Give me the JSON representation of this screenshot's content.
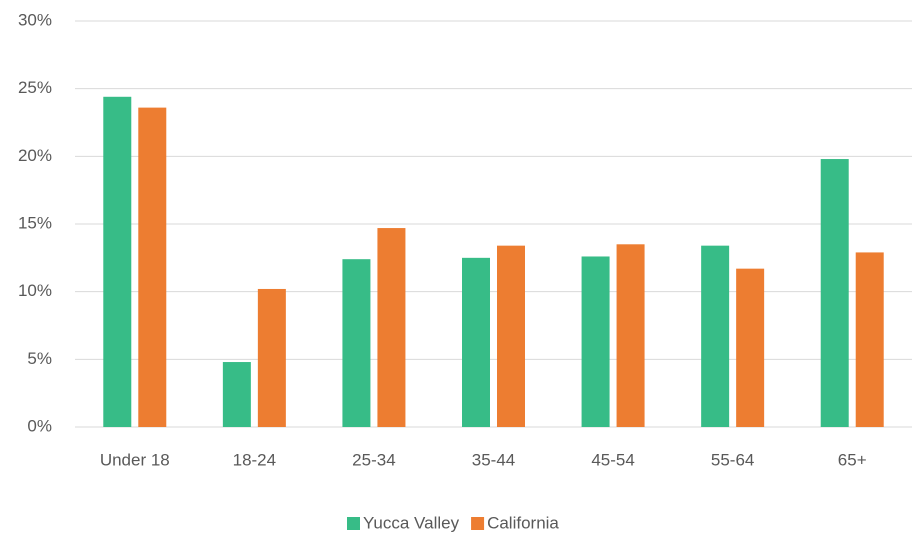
{
  "chart_data": {
    "type": "bar",
    "categories": [
      "Under 18",
      "18-24",
      "25-34",
      "35-44",
      "45-54",
      "55-64",
      "65+"
    ],
    "series": [
      {
        "name": "Yucca Valley",
        "color": "#37bc87",
        "values": [
          24.4,
          4.8,
          12.4,
          12.5,
          12.6,
          13.4,
          19.8
        ]
      },
      {
        "name": "California",
        "color": "#ed7d31",
        "values": [
          23.6,
          10.2,
          14.7,
          13.4,
          13.5,
          11.7,
          12.9
        ]
      }
    ],
    "ylim": [
      0,
      30
    ],
    "yticks": [
      {
        "value": 0,
        "label": "0%"
      },
      {
        "value": 5,
        "label": "5%"
      },
      {
        "value": 10,
        "label": "10%"
      },
      {
        "value": 15,
        "label": "15%"
      },
      {
        "value": 20,
        "label": "20%"
      },
      {
        "value": 25,
        "label": "25%"
      },
      {
        "value": 30,
        "label": "30%"
      }
    ],
    "grid": true,
    "legend": "bottom"
  }
}
